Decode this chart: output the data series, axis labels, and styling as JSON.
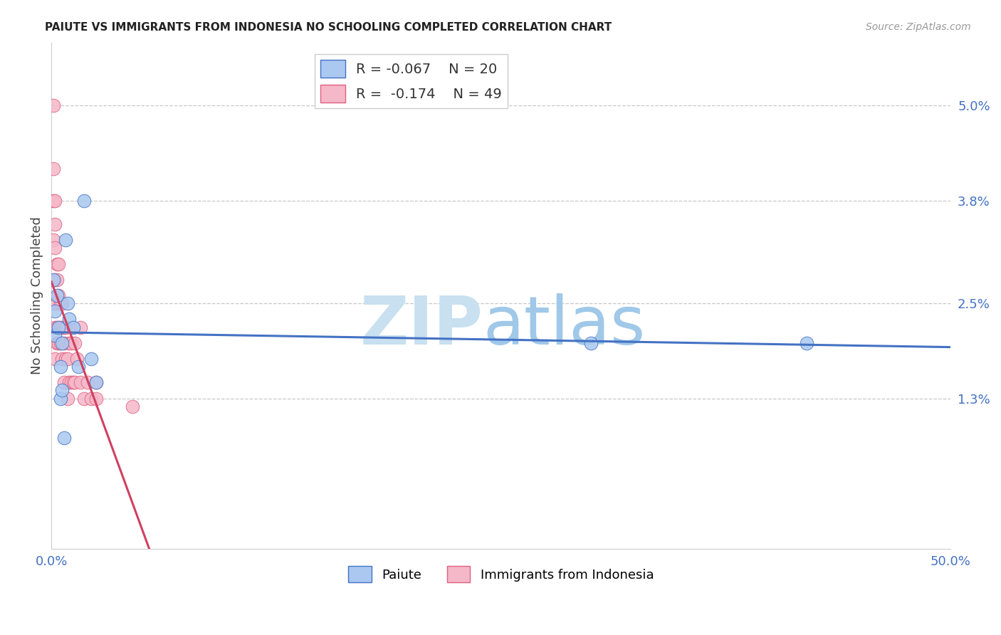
{
  "title": "PAIUTE VS IMMIGRANTS FROM INDONESIA NO SCHOOLING COMPLETED CORRELATION CHART",
  "source": "Source: ZipAtlas.com",
  "ylabel": "No Schooling Completed",
  "xlim": [
    0,
    0.5
  ],
  "ylim": [
    -0.006,
    0.058
  ],
  "grid_color": "#c8c8c8",
  "background_color": "#ffffff",
  "paiute_fill_color": "#aac8f0",
  "paiute_edge_color": "#4472c4",
  "indonesia_fill_color": "#f5b8c8",
  "indonesia_edge_color": "#e06080",
  "paiute_line_color": "#4472c4",
  "indonesia_line_color": "#d04060",
  "indonesia_line_dashed_color": "#e8a0b0",
  "watermark_zip_color": "#c8e0f0",
  "watermark_atlas_color": "#a0c8e8",
  "paiute_R": -0.067,
  "paiute_N": 20,
  "indonesia_R": -0.174,
  "indonesia_N": 49,
  "paiute_points_x": [
    0.001,
    0.002,
    0.002,
    0.003,
    0.004,
    0.005,
    0.005,
    0.006,
    0.006,
    0.007,
    0.008,
    0.009,
    0.01,
    0.012,
    0.015,
    0.018,
    0.022,
    0.025,
    0.3,
    0.42
  ],
  "paiute_points_y": [
    0.028,
    0.024,
    0.021,
    0.026,
    0.022,
    0.017,
    0.013,
    0.02,
    0.014,
    0.008,
    0.033,
    0.025,
    0.023,
    0.022,
    0.017,
    0.038,
    0.018,
    0.015,
    0.02,
    0.02
  ],
  "indonesia_points_x": [
    0.001,
    0.001,
    0.001,
    0.001,
    0.001,
    0.002,
    0.002,
    0.002,
    0.002,
    0.002,
    0.002,
    0.003,
    0.003,
    0.003,
    0.003,
    0.003,
    0.004,
    0.004,
    0.004,
    0.004,
    0.005,
    0.005,
    0.005,
    0.006,
    0.006,
    0.006,
    0.007,
    0.007,
    0.007,
    0.008,
    0.008,
    0.009,
    0.009,
    0.01,
    0.01,
    0.011,
    0.011,
    0.012,
    0.013,
    0.013,
    0.014,
    0.016,
    0.016,
    0.018,
    0.02,
    0.022,
    0.025,
    0.025,
    0.045
  ],
  "indonesia_points_y": [
    0.05,
    0.042,
    0.038,
    0.033,
    0.025,
    0.038,
    0.035,
    0.032,
    0.028,
    0.022,
    0.018,
    0.03,
    0.028,
    0.025,
    0.022,
    0.02,
    0.03,
    0.026,
    0.022,
    0.02,
    0.025,
    0.022,
    0.02,
    0.025,
    0.022,
    0.018,
    0.022,
    0.02,
    0.015,
    0.022,
    0.018,
    0.018,
    0.013,
    0.02,
    0.015,
    0.02,
    0.015,
    0.015,
    0.02,
    0.015,
    0.018,
    0.022,
    0.015,
    0.013,
    0.015,
    0.013,
    0.015,
    0.013,
    0.012
  ]
}
